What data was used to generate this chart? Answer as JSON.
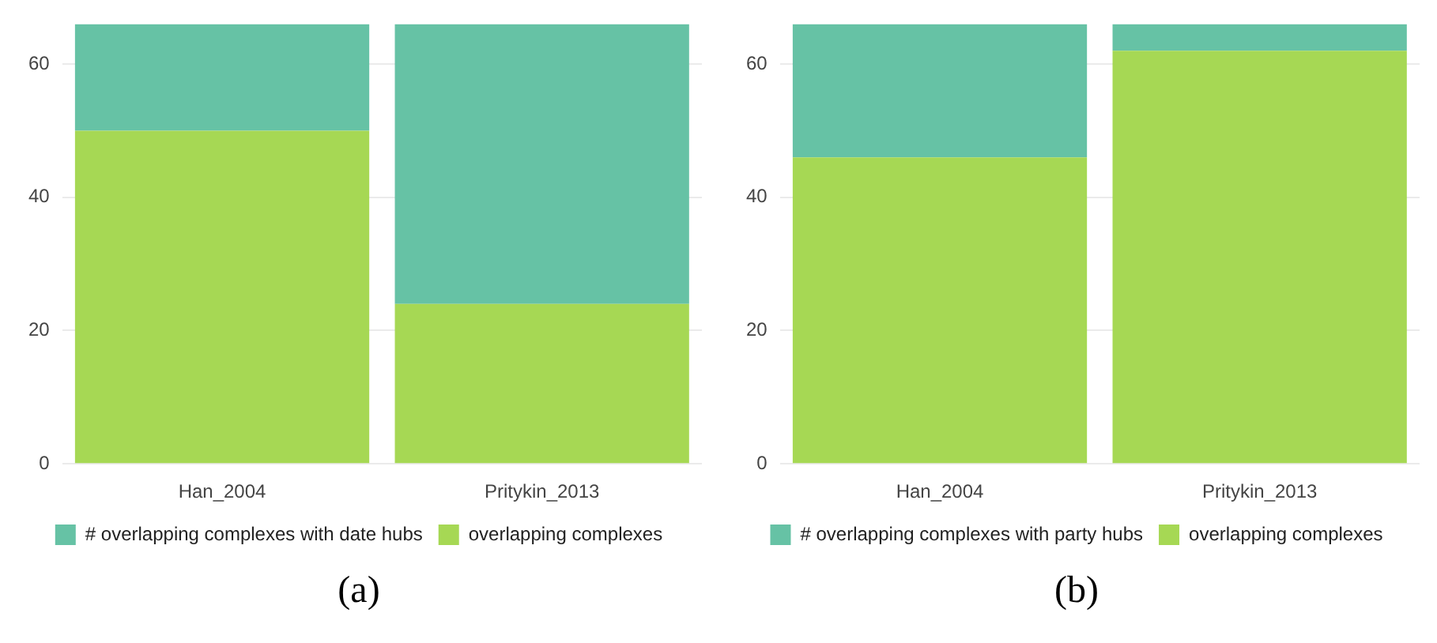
{
  "chart_data": [
    {
      "type": "bar",
      "categories": [
        "Han_2004",
        "Pritykin_2013"
      ],
      "stacked": true,
      "ylim": [
        0,
        66
      ],
      "yticks": [
        0,
        20,
        40,
        60
      ],
      "grid": "y",
      "legend": "bottom",
      "annotations": [
        "(a)"
      ],
      "series": [
        {
          "name": "overlapping complexes",
          "color": "#a6d854",
          "values": [
            50,
            24
          ]
        },
        {
          "name": "# overlapping complexes with date hubs",
          "color": "#66c2a5",
          "values": [
            16,
            42
          ]
        }
      ]
    },
    {
      "type": "bar",
      "categories": [
        "Han_2004",
        "Pritykin_2013"
      ],
      "stacked": true,
      "ylim": [
        0,
        66
      ],
      "yticks": [
        0,
        20,
        40,
        60
      ],
      "grid": "y",
      "legend": "bottom",
      "annotations": [
        "(b)"
      ],
      "series": [
        {
          "name": "overlapping complexes",
          "color": "#a6d854",
          "values": [
            46,
            62
          ]
        },
        {
          "name": "# overlapping complexes with party hubs",
          "color": "#66c2a5",
          "values": [
            20,
            4
          ]
        }
      ]
    }
  ]
}
